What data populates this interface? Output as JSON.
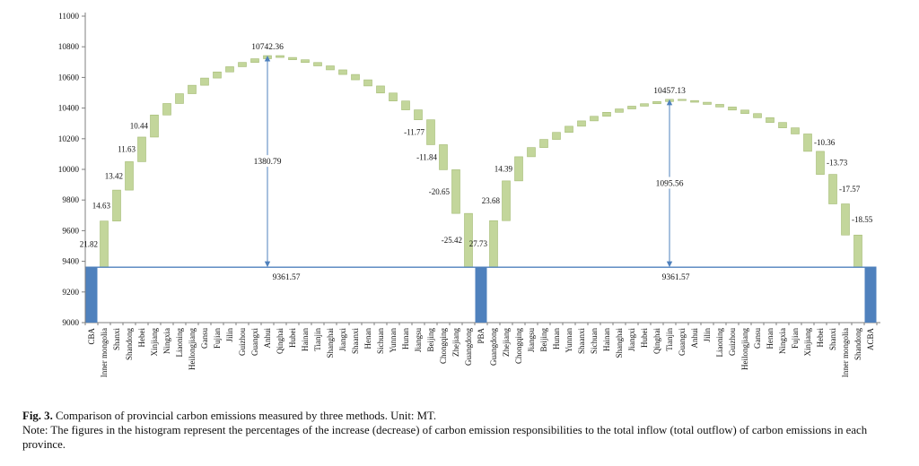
{
  "figure": {
    "caption_label": "Fig. 3.",
    "caption_text": "Comparison of provincial carbon emissions measured by three methods. Unit: MT.",
    "note": "Note: The figures in the histogram represent the percentages of the increase (decrease) of carbon emission responsibilities to the total inflow (total outflow) of carbon emissions in each province."
  },
  "chart_data": {
    "type": "bar",
    "subtype": "waterfall",
    "unit": "MT",
    "ylim": [
      9000,
      11000
    ],
    "yticks": [
      9000,
      9200,
      9400,
      9600,
      9800,
      10000,
      10200,
      10400,
      10600,
      10800,
      11000
    ],
    "baseline_value": 9361.57,
    "grid": false,
    "legend": "none",
    "colors": {
      "total_bar": "#4f81bd",
      "delta_bar": "#c3d69b",
      "delta_bar_edge": "#a4bb74",
      "baseline_line": "#4f81bd",
      "arrow": "#4f81bd",
      "axis": "#7f7f7f",
      "text": "#111111"
    },
    "columns": [
      {
        "label": "CBA",
        "type": "total",
        "value": 9361.57
      },
      {
        "label": "Inner mongolia",
        "delta": 301.29,
        "pct_label": "21.82"
      },
      {
        "label": "Shanxi",
        "delta": 202.01,
        "pct_label": "14.63"
      },
      {
        "label": "Shandong",
        "delta": 185.3,
        "pct_label": "13.42"
      },
      {
        "label": "Hebei",
        "delta": 160.59,
        "pct_label": "11.63"
      },
      {
        "label": "Xinjiang",
        "delta": 144.15,
        "pct_label": "10.44"
      },
      {
        "label": "Ningxia",
        "delta": 75
      },
      {
        "label": "Liaoning",
        "delta": 64
      },
      {
        "label": "Heilongjiang",
        "delta": 55
      },
      {
        "label": "Gansu",
        "delta": 47
      },
      {
        "label": "Fujian",
        "delta": 40
      },
      {
        "label": "Jilin",
        "delta": 34
      },
      {
        "label": "Guizhou",
        "delta": 28
      },
      {
        "label": "Guangxi",
        "delta": 24
      },
      {
        "label": "Anhui",
        "delta": 20.45
      },
      {
        "label": "Qinghai",
        "delta": -12
      },
      {
        "label": "Hubei",
        "delta": -15
      },
      {
        "label": "Hainan",
        "delta": -18
      },
      {
        "label": "Tianjin",
        "delta": -22
      },
      {
        "label": "Shanghai",
        "delta": -26
      },
      {
        "label": "Jiangxi",
        "delta": -30
      },
      {
        "label": "Shaanxi",
        "delta": -35
      },
      {
        "label": "Henan",
        "delta": -40
      },
      {
        "label": "Sichuan",
        "delta": -46
      },
      {
        "label": "Yunnan",
        "delta": -52
      },
      {
        "label": "Hunan",
        "delta": -58
      },
      {
        "label": "Jiangsu",
        "delta": -64.7
      },
      {
        "label": "Beijing",
        "delta": -162.52,
        "pct_label": "-11.77"
      },
      {
        "label": "Chongqing",
        "delta": -163.48,
        "pct_label": "-11.84"
      },
      {
        "label": "Zhejiang",
        "delta": -285.13,
        "pct_label": "-20.65"
      },
      {
        "label": "Guangdong",
        "delta": -350.96,
        "pct_label": "-25.42"
      },
      {
        "label": "PBA",
        "type": "total",
        "value": 9361.57
      },
      {
        "label": "Guangdong",
        "delta": 303.8,
        "pct_label": "27.73"
      },
      {
        "label": "Zhejiang",
        "delta": 259.43,
        "pct_label": "23.68"
      },
      {
        "label": "Chongqing",
        "delta": 157.65,
        "pct_label": "14.39"
      },
      {
        "label": "Jiangsu",
        "delta": 60
      },
      {
        "label": "Beijing",
        "delta": 53
      },
      {
        "label": "Hunan",
        "delta": 46
      },
      {
        "label": "Yunnan",
        "delta": 40
      },
      {
        "label": "Shaanxi",
        "delta": 35
      },
      {
        "label": "Sichuan",
        "delta": 30
      },
      {
        "label": "Hainan",
        "delta": 26
      },
      {
        "label": "Shanghai",
        "delta": 22
      },
      {
        "label": "Jiangxi",
        "delta": 18
      },
      {
        "label": "Hubei",
        "delta": 16
      },
      {
        "label": "Qinghai",
        "delta": 14
      },
      {
        "label": "Tianjin",
        "delta": 14.68
      },
      {
        "label": "Guangxi",
        "delta": -8
      },
      {
        "label": "Anhui",
        "delta": -11
      },
      {
        "label": "Jilin",
        "delta": -14
      },
      {
        "label": "Liaoning",
        "delta": -17
      },
      {
        "label": "Guizhou",
        "delta": -20
      },
      {
        "label": "Heilongjiang",
        "delta": -23
      },
      {
        "label": "Gansu",
        "delta": -27
      },
      {
        "label": "Henan",
        "delta": -31
      },
      {
        "label": "Ningxia",
        "delta": -35
      },
      {
        "label": "Fujian",
        "delta": -39.96
      },
      {
        "label": "Xinjiang",
        "delta": -113.5,
        "pct_label": "-10.36",
        "label_side": "right"
      },
      {
        "label": "Hebei",
        "delta": -150.42,
        "pct_label": "-13.73",
        "label_side": "right"
      },
      {
        "label": "Shanxi",
        "delta": -192.49,
        "pct_label": "-17.57",
        "label_side": "right"
      },
      {
        "label": "Inner mongolia",
        "delta": -203.23,
        "pct_label": "-18.55",
        "label_side": "right"
      },
      {
        "label": "Shandong",
        "delta": -209.96
      },
      {
        "label": "ACBA",
        "type": "total",
        "value": 9361.57
      }
    ],
    "annotations": {
      "peaks": [
        {
          "label": "10742.36",
          "value": 10742.36,
          "at_index": 14
        },
        {
          "label": "10457.13",
          "value": 10457.13,
          "at_index": 46
        }
      ],
      "arrows": [
        {
          "label": "1380.79",
          "from": 9361.57,
          "to": 10742.36,
          "at_index": 14
        },
        {
          "label": "1095.56",
          "from": 9361.57,
          "to": 10457.13,
          "at_index": 46
        }
      ],
      "baseline_labels": [
        {
          "label": "9361.57",
          "between": [
            0,
            31
          ]
        },
        {
          "label": "9361.57",
          "between": [
            31,
            62
          ]
        }
      ]
    }
  }
}
